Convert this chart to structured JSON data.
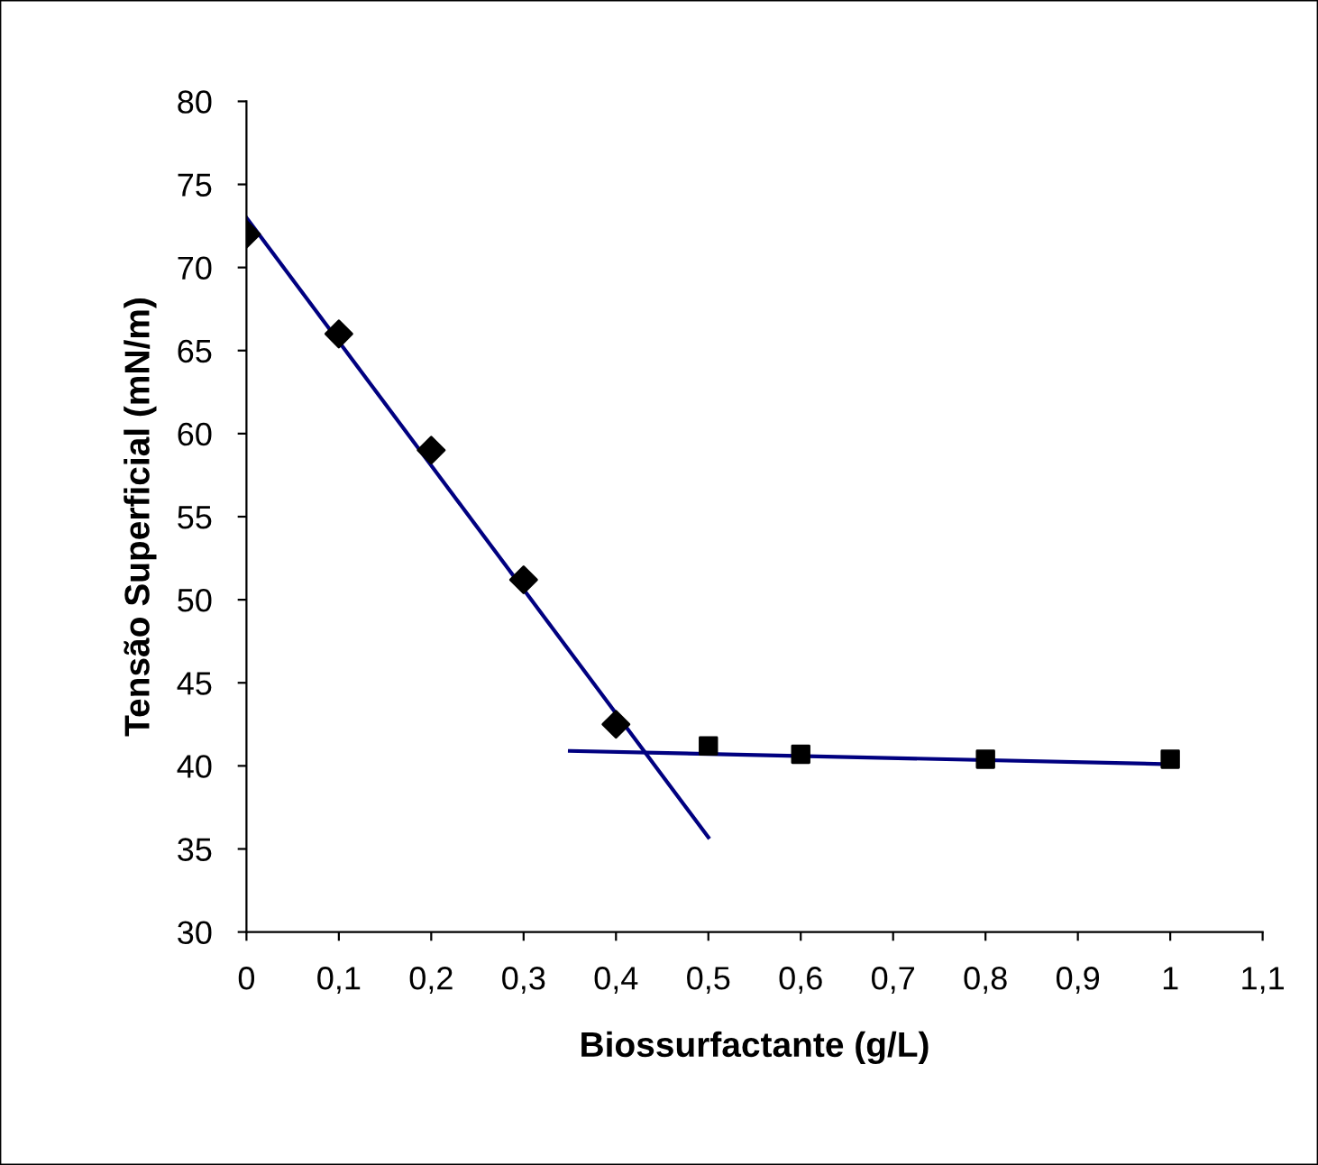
{
  "chart_data": {
    "type": "scatter",
    "xlabel": "Biossurfactante (g/L)",
    "ylabel": "Tensão Superficial (mN/m)",
    "xlim": [
      0,
      1.1
    ],
    "ylim": [
      30,
      80
    ],
    "xticks": [
      0,
      {
        "value": 0.1,
        "label": "0,1"
      },
      {
        "value": 0.2,
        "label": "0,2"
      },
      {
        "value": 0.3,
        "label": "0,3"
      },
      {
        "value": 0.4,
        "label": "0,4"
      },
      {
        "value": 0.5,
        "label": "0,5"
      },
      {
        "value": 0.6,
        "label": "0,6"
      },
      {
        "value": 0.7,
        "label": "0,7"
      },
      {
        "value": 0.8,
        "label": "0,8"
      },
      {
        "value": 0.9,
        "label": "0,9"
      },
      1,
      {
        "value": 1.1,
        "label": "1,1"
      }
    ],
    "yticks": [
      30,
      35,
      40,
      45,
      50,
      55,
      60,
      65,
      70,
      75,
      80
    ],
    "grid": false,
    "legend": false,
    "series": [
      {
        "marker": "diamond",
        "color": "#000000",
        "x": [
          0,
          0.1,
          0.2,
          0.3,
          0.4
        ],
        "values": [
          72,
          66,
          59,
          51.2,
          42.5
        ]
      },
      {
        "marker": "square",
        "color": "#000000",
        "x": [
          0.5,
          0.6,
          0.8,
          1.0
        ],
        "values": [
          41.2,
          40.7,
          40.4,
          40.4
        ]
      },
      {
        "type": "line",
        "marker": "none",
        "color": "#000080",
        "x": [
          0,
          0.5
        ],
        "values": [
          73,
          35.7
        ]
      },
      {
        "type": "line",
        "marker": "none",
        "color": "#000080",
        "x": [
          0.35,
          1.0
        ],
        "values": [
          40.9,
          40.1
        ]
      }
    ]
  }
}
